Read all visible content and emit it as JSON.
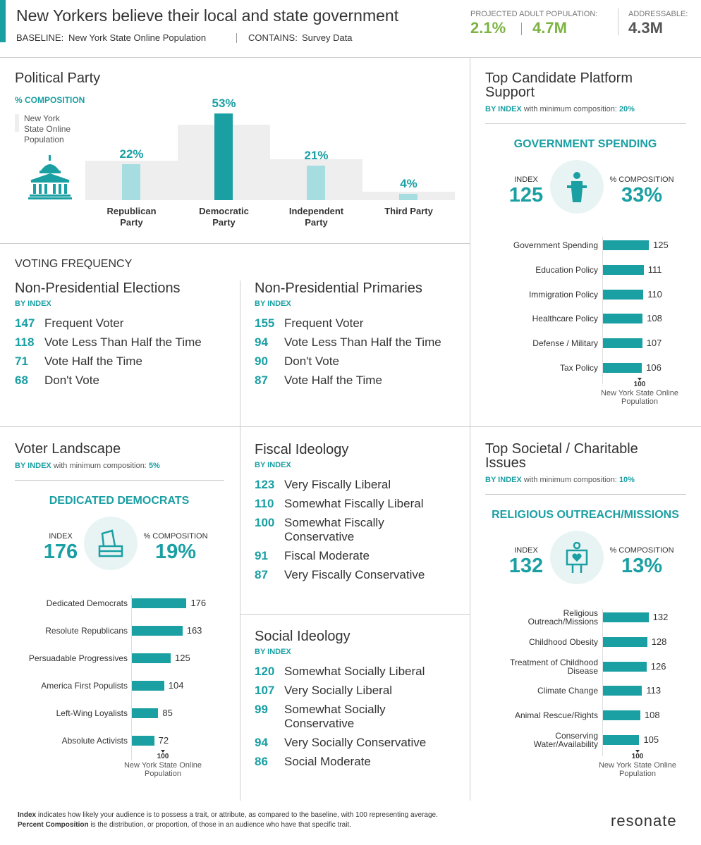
{
  "header": {
    "title": "New Yorkers believe their local and state government",
    "baseline_label": "BASELINE:",
    "baseline": "New York State Online Population",
    "contains_label": "CONTAINS:",
    "contains": "Survey Data",
    "projected_label": "PROJECTED ADULT POPULATION:",
    "projected_pct": "2.1%",
    "projected_count": "4.7M",
    "addressable_label": "ADDRESSABLE:",
    "addressable": "4.3M"
  },
  "political_party": {
    "title": "Political Party",
    "subtitle": "% COMPOSITION",
    "baseline_legend": "New York State Online Population",
    "categories": [
      "Republican Party",
      "Democratic Party",
      "Independent Party",
      "Third Party"
    ],
    "values": [
      22,
      53,
      21,
      4
    ],
    "value_labels": [
      "22%",
      "53%",
      "21%",
      "4%"
    ],
    "baseline_values": [
      24,
      46,
      25,
      5
    ],
    "colors": [
      "#a6dde0",
      "#1a9fa3",
      "#a6dde0",
      "#a6dde0"
    ],
    "baseline_color": "#eeeeee"
  },
  "voting_frequency": {
    "title": "VOTING FREQUENCY",
    "lists": [
      {
        "title": "Non-Presidential Elections",
        "subtitle": "BY INDEX",
        "items": [
          {
            "value": 147,
            "label": "Frequent Voter"
          },
          {
            "value": 118,
            "label": "Vote Less Than Half the Time"
          },
          {
            "value": 71,
            "label": "Vote Half the Time"
          },
          {
            "value": 68,
            "label": "Don't Vote"
          }
        ]
      },
      {
        "title": "Non-Presidential Primaries",
        "subtitle": "BY INDEX",
        "items": [
          {
            "value": 155,
            "label": "Frequent Voter"
          },
          {
            "value": 94,
            "label": "Vote Less Than Half the Time"
          },
          {
            "value": 90,
            "label": "Don't Vote"
          },
          {
            "value": 87,
            "label": "Vote Half the Time"
          }
        ]
      }
    ]
  },
  "fiscal_ideology": {
    "title": "Fiscal Ideology",
    "subtitle": "BY INDEX",
    "items": [
      {
        "value": 123,
        "label": "Very Fiscally Liberal"
      },
      {
        "value": 110,
        "label": "Somewhat Fiscally Liberal"
      },
      {
        "value": 100,
        "label": "Somewhat Fiscally Conservative"
      },
      {
        "value": 91,
        "label": "Fiscal Moderate"
      },
      {
        "value": 87,
        "label": "Very Fiscally Conservative"
      }
    ]
  },
  "social_ideology": {
    "title": "Social Ideology",
    "subtitle": "BY INDEX",
    "items": [
      {
        "value": 120,
        "label": "Somewhat Socially Liberal"
      },
      {
        "value": 107,
        "label": "Very Socially Liberal"
      },
      {
        "value": 99,
        "label": "Somewhat Socially Conservative"
      },
      {
        "value": 94,
        "label": "Very Socially Conservative"
      },
      {
        "value": 86,
        "label": "Social Moderate"
      }
    ]
  },
  "voter_landscape": {
    "title": "Voter Landscape",
    "subtitle": "BY INDEX",
    "subtitle_note": "with minimum composition:",
    "min_composition": "5%",
    "highlight": "DEDICATED DEMOCRATS",
    "index_label": "INDEX",
    "index": 176,
    "composition_label": "% COMPOSITION",
    "composition": "19%",
    "categories": [
      "Dedicated Democrats",
      "Resolute Republicans",
      "Persuadable Progressives",
      "America First Populists",
      "Left-Wing Loyalists",
      "Absolute Activists"
    ],
    "values": [
      176,
      163,
      125,
      104,
      85,
      72
    ],
    "baseline_tick": 100,
    "baseline_label": "New York State Online Population"
  },
  "candidate_platform": {
    "title": "Top Candidate Platform Support",
    "subtitle": "BY INDEX",
    "subtitle_note": "with minimum composition:",
    "min_composition": "20%",
    "highlight": "GOVERNMENT SPENDING",
    "index_label": "INDEX",
    "index": 125,
    "composition_label": "% COMPOSITION",
    "composition": "33%",
    "categories": [
      "Government Spending",
      "Education Policy",
      "Immigration Policy",
      "Healthcare Policy",
      "Defense / Military",
      "Tax Policy"
    ],
    "values": [
      125,
      111,
      110,
      108,
      107,
      106
    ],
    "baseline_tick": 100,
    "baseline_label": "New York State Online Population"
  },
  "societal_issues": {
    "title": "Top Societal / Charitable Issues",
    "subtitle": "BY INDEX",
    "subtitle_note": "with minimum composition:",
    "min_composition": "10%",
    "highlight": "RELIGIOUS OUTREACH/MISSIONS",
    "index_label": "INDEX",
    "index": 132,
    "composition_label": "% COMPOSITION",
    "composition": "13%",
    "categories": [
      "Religious Outreach/Missions",
      "Childhood Obesity",
      "Treatment of Childhood Disease",
      "Climate Change",
      "Animal Rescue/Rights",
      "Conserving Water/Availability"
    ],
    "values": [
      132,
      128,
      126,
      113,
      108,
      105
    ],
    "baseline_tick": 100,
    "baseline_label": "New York State Online Population"
  },
  "footer": {
    "notes": [
      {
        "term": "Index",
        "text": "indicates how likely your audience is to possess a trait, or attribute, as compared to the baseline, with 100 representing average."
      },
      {
        "term": "Percent Composition",
        "text": "is the distribution, or proportion, of those in an audience who have that specific trait."
      }
    ],
    "logo": "resonate"
  }
}
